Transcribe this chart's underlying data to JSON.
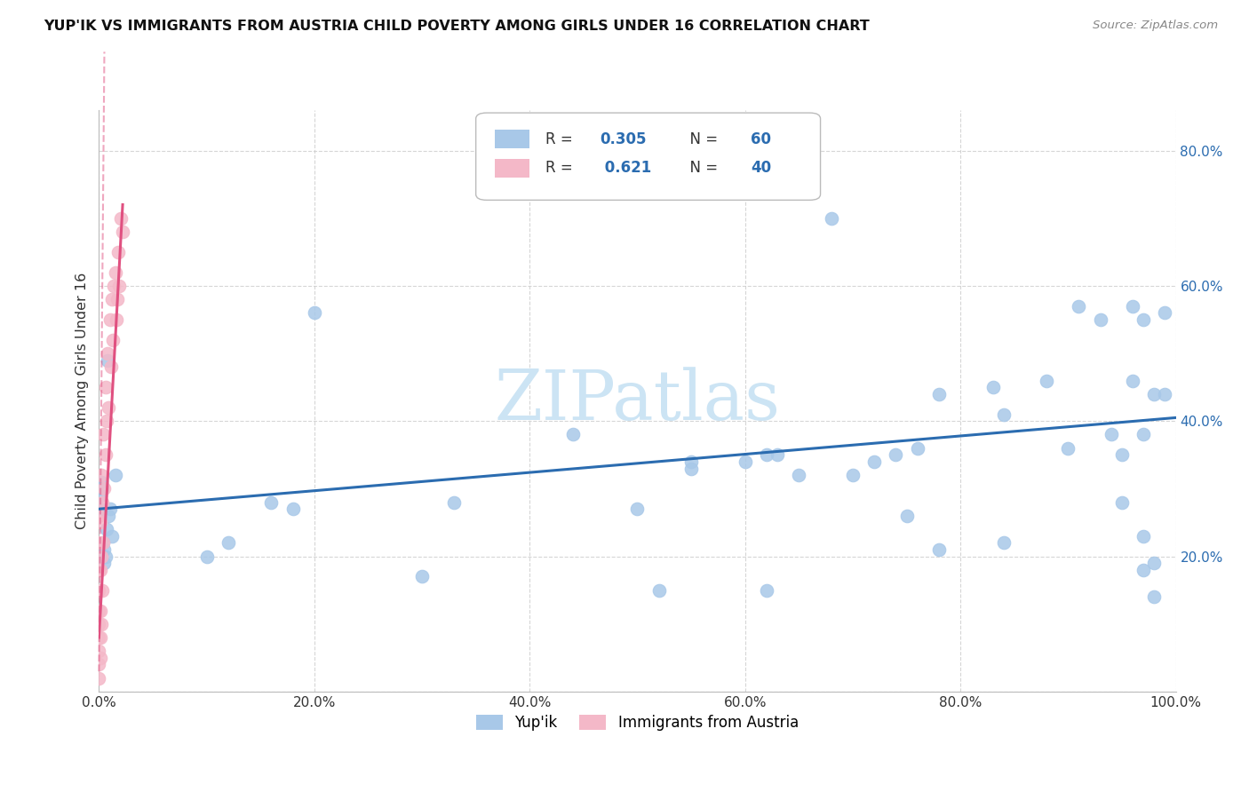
{
  "title": "YUP'IK VS IMMIGRANTS FROM AUSTRIA CHILD POVERTY AMONG GIRLS UNDER 16 CORRELATION CHART",
  "source": "Source: ZipAtlas.com",
  "ylabel": "Child Poverty Among Girls Under 16",
  "blue_R": 0.305,
  "blue_N": 60,
  "pink_R": 0.621,
  "pink_N": 40,
  "blue_color": "#a8c8e8",
  "pink_color": "#f4b8c8",
  "blue_line_color": "#2b6cb0",
  "pink_line_color": "#e05080",
  "watermark_text": "ZIPatlas",
  "watermark_color": "#cce4f4",
  "blue_x": [
    0.001,
    0.001,
    0.002,
    0.003,
    0.004,
    0.005,
    0.005,
    0.006,
    0.007,
    0.008,
    0.009,
    0.01,
    0.012,
    0.015,
    0.1,
    0.12,
    0.16,
    0.18,
    0.2,
    0.3,
    0.33,
    0.44,
    0.5,
    0.52,
    0.55,
    0.55,
    0.6,
    0.62,
    0.62,
    0.63,
    0.65,
    0.68,
    0.7,
    0.72,
    0.74,
    0.75,
    0.76,
    0.78,
    0.78,
    0.83,
    0.84,
    0.84,
    0.88,
    0.9,
    0.91,
    0.93,
    0.94,
    0.95,
    0.95,
    0.96,
    0.96,
    0.97,
    0.97,
    0.97,
    0.97,
    0.98,
    0.98,
    0.98,
    0.99,
    0.99
  ],
  "blue_y": [
    0.27,
    0.29,
    0.31,
    0.3,
    0.22,
    0.19,
    0.21,
    0.2,
    0.24,
    0.49,
    0.26,
    0.27,
    0.23,
    0.32,
    0.2,
    0.22,
    0.28,
    0.27,
    0.56,
    0.17,
    0.28,
    0.38,
    0.27,
    0.15,
    0.34,
    0.33,
    0.34,
    0.15,
    0.35,
    0.35,
    0.32,
    0.7,
    0.32,
    0.34,
    0.35,
    0.26,
    0.36,
    0.44,
    0.21,
    0.45,
    0.41,
    0.22,
    0.46,
    0.36,
    0.57,
    0.55,
    0.38,
    0.35,
    0.28,
    0.46,
    0.57,
    0.38,
    0.23,
    0.18,
    0.55,
    0.44,
    0.14,
    0.19,
    0.44,
    0.56
  ],
  "pink_x": [
    0.0,
    0.0,
    0.0,
    0.0,
    0.0,
    0.0,
    0.0,
    0.0,
    0.0,
    0.0,
    0.001,
    0.001,
    0.001,
    0.001,
    0.001,
    0.002,
    0.002,
    0.002,
    0.003,
    0.003,
    0.004,
    0.004,
    0.005,
    0.006,
    0.006,
    0.007,
    0.008,
    0.009,
    0.01,
    0.011,
    0.012,
    0.013,
    0.014,
    0.015,
    0.016,
    0.017,
    0.018,
    0.019,
    0.02,
    0.022
  ],
  "pink_y": [
    0.02,
    0.04,
    0.06,
    0.08,
    0.1,
    0.12,
    0.15,
    0.18,
    0.22,
    0.26,
    0.05,
    0.08,
    0.12,
    0.18,
    0.25,
    0.1,
    0.2,
    0.32,
    0.15,
    0.28,
    0.22,
    0.38,
    0.3,
    0.35,
    0.45,
    0.4,
    0.5,
    0.42,
    0.55,
    0.48,
    0.58,
    0.52,
    0.6,
    0.62,
    0.55,
    0.58,
    0.65,
    0.6,
    0.7,
    0.68
  ],
  "xlim": [
    0.0,
    1.0
  ],
  "ylim": [
    0.0,
    0.86
  ],
  "xticks": [
    0.0,
    0.2,
    0.4,
    0.6,
    0.8,
    1.0
  ],
  "yticks": [
    0.0,
    0.2,
    0.4,
    0.6,
    0.8
  ],
  "xtick_labels": [
    "0.0%",
    "20.0%",
    "40.0%",
    "60.0%",
    "80.0%",
    "100.0%"
  ],
  "ytick_labels_right": [
    "",
    "20.0%",
    "40.0%",
    "60.0%",
    "80.0%"
  ],
  "blue_trend_x0": 0.0,
  "blue_trend_y0": 0.27,
  "blue_trend_x1": 1.0,
  "blue_trend_y1": 0.405,
  "pink_trend_x0": 0.0,
  "pink_trend_y0": 0.08,
  "pink_trend_x1": 0.022,
  "pink_trend_y1": 0.72
}
